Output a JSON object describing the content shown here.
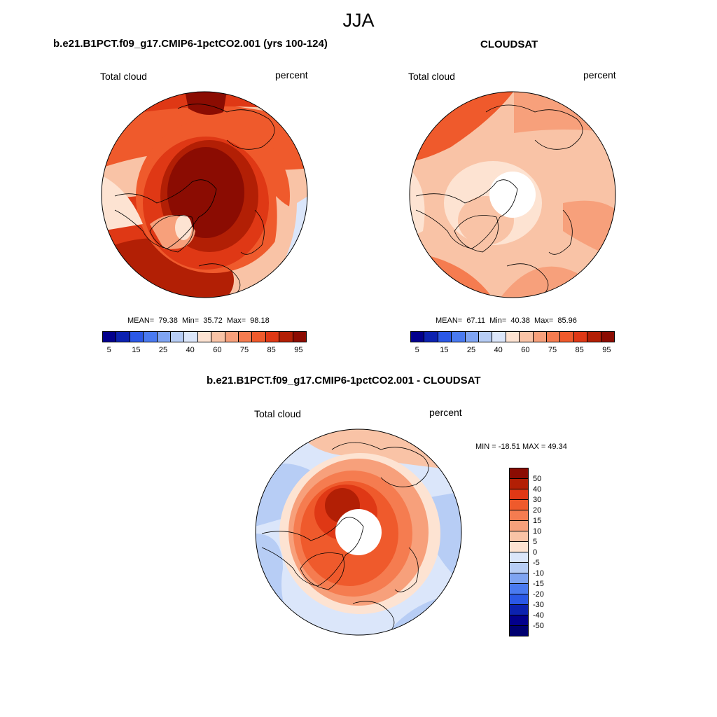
{
  "page": {
    "title": "JJA"
  },
  "panels": {
    "model": {
      "title": "b.e21.B1PCT.f09_g17.CMIP6-1pctCO2.001 (yrs 100-124)",
      "variable": "Total cloud",
      "units": "percent",
      "stats": "MEAN=  79.38  Min=  35.72  Max=  98.18"
    },
    "obs": {
      "title": "CLOUDSAT",
      "variable": "Total cloud",
      "units": "percent",
      "stats": "MEAN=  67.11  Min=  40.38  Max=  85.96"
    },
    "diff": {
      "title": "b.e21.B1PCT.f09_g17.CMIP6-1pctCO2.001 - CLOUDSAT",
      "variable": "Total cloud",
      "units": "percent",
      "stats": "MIN = -18.51 MAX =  49.34"
    }
  },
  "colorbars": {
    "abs": {
      "tick_labels": [
        "5",
        "15",
        "25",
        "40",
        "60",
        "75",
        "85",
        "95"
      ],
      "colors": [
        "#03008c",
        "#0c22b0",
        "#2b58e6",
        "#4a7af0",
        "#7fa4f2",
        "#b7cdf5",
        "#dbe6fa",
        "#fde3d2",
        "#f9c3a6",
        "#f7a07b",
        "#f57c50",
        "#ef5a2c",
        "#df3815",
        "#b21f05",
        "#8b0c02"
      ]
    },
    "diff": {
      "labels": [
        "50",
        "40",
        "30",
        "20",
        "15",
        "10",
        "5",
        "0",
        "-5",
        "-10",
        "-15",
        "-20",
        "-30",
        "-40",
        "-50"
      ],
      "colors": [
        "#8b0c02",
        "#b21f05",
        "#df3815",
        "#ef5a2c",
        "#f57c50",
        "#f7a07b",
        "#f9c3a6",
        "#fde3d2",
        "#dbe6fa",
        "#b7cdf5",
        "#7fa4f2",
        "#4a7af0",
        "#2b58e6",
        "#0c22b0",
        "#03008c",
        "#000070"
      ]
    }
  }
}
